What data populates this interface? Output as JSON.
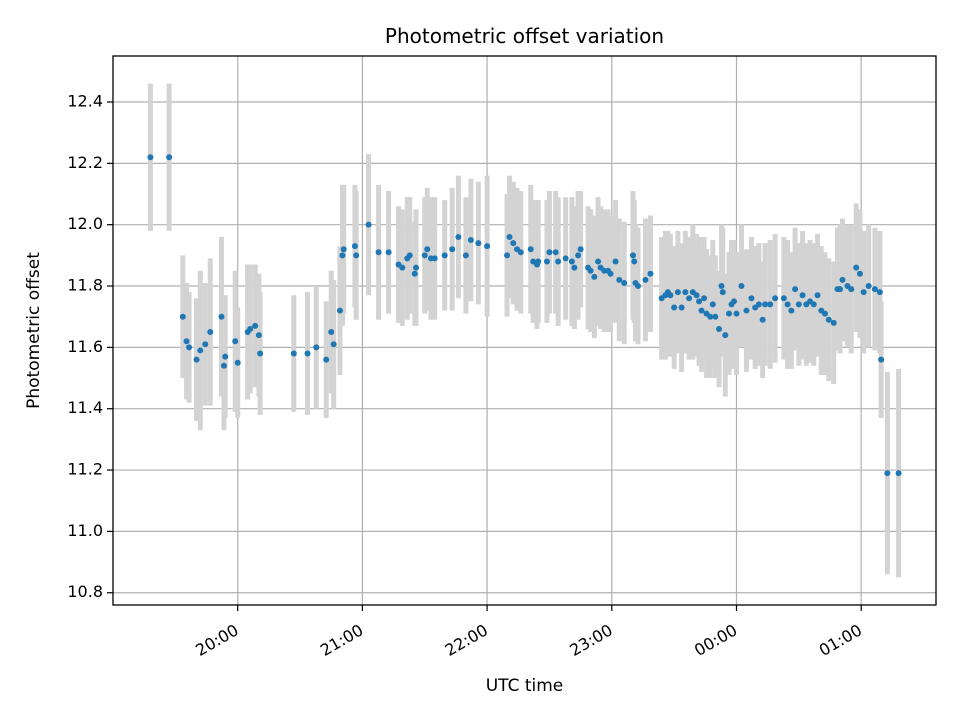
{
  "chart_data": {
    "type": "scatter",
    "title": "Photometric offset variation",
    "xlabel": "UTC time",
    "ylabel": "Photometric offset",
    "x_unit": "hours UTC (values past 24 are after midnight)",
    "xlim": [
      19.0,
      25.6
    ],
    "ylim": [
      10.76,
      12.55
    ],
    "x_ticks": [
      {
        "value": 20,
        "label": "20:00"
      },
      {
        "value": 21,
        "label": "21:00"
      },
      {
        "value": 22,
        "label": "22:00"
      },
      {
        "value": 23,
        "label": "23:00"
      },
      {
        "value": 24,
        "label": "00:00"
      },
      {
        "value": 25,
        "label": "01:00"
      }
    ],
    "y_ticks": [
      10.8,
      11.0,
      11.2,
      11.4,
      11.6,
      11.8,
      12.0,
      12.2,
      12.4
    ],
    "grid": true,
    "colors": {
      "marker": "#1f77b4",
      "errorbar": "#d3d3d3"
    },
    "series": [
      {
        "marker": "point",
        "points": [
          [
            19.3,
            12.22,
            0.24
          ],
          [
            19.45,
            12.22,
            0.24
          ],
          [
            19.56,
            11.7,
            0.2
          ],
          [
            19.59,
            11.62,
            0.19
          ],
          [
            19.61,
            11.6,
            0.18
          ],
          [
            19.67,
            11.56,
            0.2
          ],
          [
            19.7,
            11.59,
            0.26
          ],
          [
            19.74,
            11.61,
            0.2
          ],
          [
            19.78,
            11.65,
            0.24
          ],
          [
            19.87,
            11.7,
            0.26
          ],
          [
            19.89,
            11.54,
            0.21
          ],
          [
            19.9,
            11.57,
            0.2
          ],
          [
            19.98,
            11.62,
            0.23
          ],
          [
            20.0,
            11.55,
            0.18
          ],
          [
            20.08,
            11.65,
            0.22
          ],
          [
            20.1,
            11.66,
            0.21
          ],
          [
            20.14,
            11.67,
            0.2
          ],
          [
            20.17,
            11.64,
            0.2
          ],
          [
            20.18,
            11.58,
            0.2
          ],
          [
            20.45,
            11.58,
            0.19
          ],
          [
            20.56,
            11.58,
            0.2
          ],
          [
            20.63,
            11.6,
            0.2
          ],
          [
            20.71,
            11.56,
            0.19
          ],
          [
            20.75,
            11.65,
            0.2
          ],
          [
            20.77,
            11.61,
            0.21
          ],
          [
            20.82,
            11.72,
            0.21
          ],
          [
            20.84,
            11.9,
            0.23
          ],
          [
            20.85,
            11.92,
            0.21
          ],
          [
            20.94,
            11.93,
            0.2
          ],
          [
            20.95,
            11.9,
            0.21
          ],
          [
            21.05,
            12.0,
            0.23
          ],
          [
            21.13,
            11.91,
            0.22
          ],
          [
            21.21,
            11.91,
            0.2
          ],
          [
            21.29,
            11.87,
            0.19
          ],
          [
            21.32,
            11.86,
            0.19
          ],
          [
            21.36,
            11.89,
            0.2
          ],
          [
            21.38,
            11.9,
            0.19
          ],
          [
            21.42,
            11.84,
            0.17
          ],
          [
            21.43,
            11.86,
            0.19
          ],
          [
            21.5,
            11.9,
            0.19
          ],
          [
            21.52,
            11.92,
            0.2
          ],
          [
            21.55,
            11.89,
            0.2
          ],
          [
            21.58,
            11.89,
            0.2
          ],
          [
            21.66,
            11.9,
            0.18
          ],
          [
            21.72,
            11.92,
            0.2
          ],
          [
            21.77,
            11.96,
            0.2
          ],
          [
            21.83,
            11.9,
            0.19
          ],
          [
            21.87,
            11.95,
            0.2
          ],
          [
            21.93,
            11.94,
            0.2
          ],
          [
            22.0,
            11.93,
            0.23
          ],
          [
            22.16,
            11.9,
            0.2
          ],
          [
            22.18,
            11.96,
            0.2
          ],
          [
            22.21,
            11.94,
            0.2
          ],
          [
            22.24,
            11.92,
            0.2
          ],
          [
            22.27,
            11.91,
            0.2
          ],
          [
            22.35,
            11.92,
            0.21
          ],
          [
            22.37,
            11.88,
            0.2
          ],
          [
            22.4,
            11.87,
            0.21
          ],
          [
            22.41,
            11.88,
            0.2
          ],
          [
            22.48,
            11.88,
            0.2
          ],
          [
            22.5,
            11.91,
            0.2
          ],
          [
            22.55,
            11.91,
            0.2
          ],
          [
            22.57,
            11.88,
            0.21
          ],
          [
            22.63,
            11.89,
            0.2
          ],
          [
            22.68,
            11.88,
            0.21
          ],
          [
            22.7,
            11.86,
            0.2
          ],
          [
            22.73,
            11.9,
            0.21
          ],
          [
            22.75,
            11.92,
            0.19
          ],
          [
            22.81,
            11.86,
            0.2
          ],
          [
            22.83,
            11.85,
            0.2
          ],
          [
            22.86,
            11.83,
            0.2
          ],
          [
            22.89,
            11.88,
            0.21
          ],
          [
            22.91,
            11.86,
            0.2
          ],
          [
            22.94,
            11.85,
            0.2
          ],
          [
            22.97,
            11.85,
            0.2
          ],
          [
            22.99,
            11.84,
            0.19
          ],
          [
            23.03,
            11.88,
            0.2
          ],
          [
            23.06,
            11.82,
            0.2
          ],
          [
            23.1,
            11.81,
            0.2
          ],
          [
            23.17,
            11.9,
            0.21
          ],
          [
            23.18,
            11.88,
            0.2
          ],
          [
            23.19,
            11.81,
            0.19
          ],
          [
            23.21,
            11.8,
            0.19
          ],
          [
            23.27,
            11.82,
            0.2
          ],
          [
            23.31,
            11.84,
            0.19
          ],
          [
            23.4,
            11.76,
            0.2
          ],
          [
            23.43,
            11.77,
            0.21
          ],
          [
            23.45,
            11.78,
            0.2
          ],
          [
            23.47,
            11.77,
            0.2
          ],
          [
            23.5,
            11.73,
            0.2
          ],
          [
            23.53,
            11.78,
            0.2
          ],
          [
            23.56,
            11.73,
            0.21
          ],
          [
            23.59,
            11.78,
            0.2
          ],
          [
            23.62,
            11.76,
            0.2
          ],
          [
            23.65,
            11.78,
            0.22
          ],
          [
            23.68,
            11.77,
            0.2
          ],
          [
            23.7,
            11.75,
            0.21
          ],
          [
            23.72,
            11.72,
            0.2
          ],
          [
            23.74,
            11.76,
            0.2
          ],
          [
            23.76,
            11.71,
            0.21
          ],
          [
            23.79,
            11.7,
            0.2
          ],
          [
            23.81,
            11.74,
            0.21
          ],
          [
            23.83,
            11.7,
            0.2
          ],
          [
            23.86,
            11.66,
            0.19
          ],
          [
            23.88,
            11.8,
            0.2
          ],
          [
            23.89,
            11.78,
            0.21
          ],
          [
            23.91,
            11.64,
            0.2
          ],
          [
            23.94,
            11.71,
            0.2
          ],
          [
            23.96,
            11.74,
            0.21
          ],
          [
            23.98,
            11.75,
            0.2
          ],
          [
            24.0,
            11.71,
            0.2
          ],
          [
            24.04,
            11.8,
            0.2
          ],
          [
            24.08,
            11.72,
            0.2
          ],
          [
            24.12,
            11.76,
            0.2
          ],
          [
            24.15,
            11.73,
            0.2
          ],
          [
            24.18,
            11.74,
            0.2
          ],
          [
            24.21,
            11.69,
            0.19
          ],
          [
            24.23,
            11.74,
            0.2
          ],
          [
            24.27,
            11.74,
            0.21
          ],
          [
            24.31,
            11.76,
            0.21
          ],
          [
            24.38,
            11.76,
            0.2
          ],
          [
            24.41,
            11.74,
            0.21
          ],
          [
            24.44,
            11.72,
            0.19
          ],
          [
            24.47,
            11.79,
            0.2
          ],
          [
            24.5,
            11.74,
            0.2
          ],
          [
            24.53,
            11.77,
            0.21
          ],
          [
            24.56,
            11.74,
            0.2
          ],
          [
            24.59,
            11.75,
            0.2
          ],
          [
            24.62,
            11.74,
            0.2
          ],
          [
            24.65,
            11.77,
            0.2
          ],
          [
            24.68,
            11.72,
            0.21
          ],
          [
            24.71,
            11.71,
            0.2
          ],
          [
            24.74,
            11.69,
            0.2
          ],
          [
            24.78,
            11.68,
            0.2
          ],
          [
            24.81,
            11.79,
            0.2
          ],
          [
            24.83,
            11.79,
            0.21
          ],
          [
            24.85,
            11.82,
            0.2
          ],
          [
            24.89,
            11.8,
            0.2
          ],
          [
            24.92,
            11.79,
            0.21
          ],
          [
            24.96,
            11.86,
            0.21
          ],
          [
            24.99,
            11.84,
            0.21
          ],
          [
            25.02,
            11.78,
            0.2
          ],
          [
            25.06,
            11.8,
            0.2
          ],
          [
            25.11,
            11.79,
            0.2
          ],
          [
            25.15,
            11.78,
            0.2
          ],
          [
            25.16,
            11.56,
            0.19
          ],
          [
            25.21,
            11.19,
            0.33
          ],
          [
            25.3,
            11.19,
            0.34
          ]
        ]
      }
    ]
  }
}
